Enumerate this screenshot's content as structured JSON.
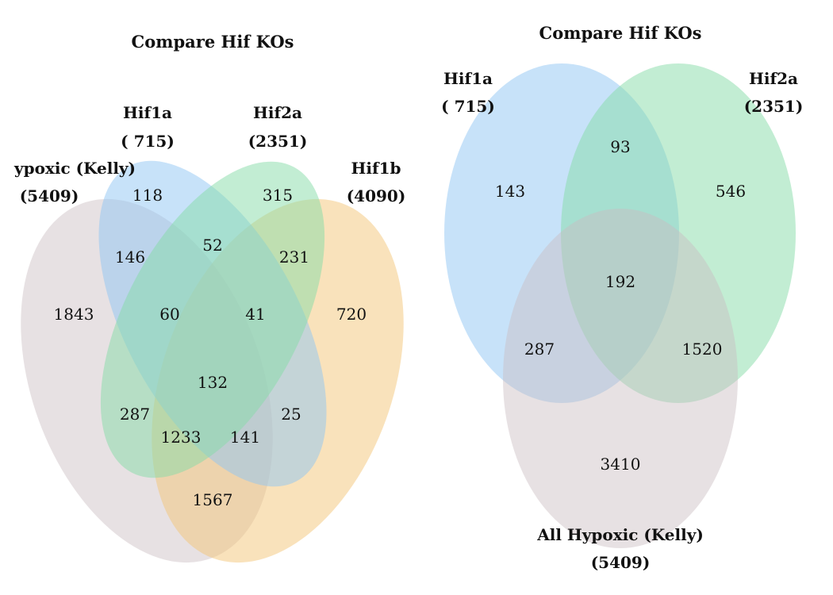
{
  "colors": {
    "grey": "#c9bcc0",
    "blue": "#8fc5f3",
    "green": "#86dca7",
    "orange": "#f3c578",
    "text": "#111111"
  },
  "left": {
    "title": "Compare Hif KOs",
    "sets": {
      "all_hypoxic": {
        "name": "ypoxic (Kelly)",
        "size": "(5409)"
      },
      "hif1a": {
        "name": "Hif1a",
        "size": "( 715)"
      },
      "hif2a": {
        "name": "Hif2a",
        "size": "(2351)"
      },
      "hif1b": {
        "name": "Hif1b",
        "size": "(4090)"
      }
    },
    "regions": {
      "hif1a_only": "118",
      "hif2a_only": "315",
      "hypoxic_only": "1843",
      "hif1b_only": "720",
      "hif1a_hif2a": "52",
      "hypoxic_hif1a": "146",
      "hif2a_hif1b": "231",
      "hypoxic_hif1a_hif2a": "60",
      "hif1a_hif2a_hif1b": "41",
      "all_four": "132",
      "hypoxic_hif2a": "287",
      "hif1a_hif1b": "25",
      "hypoxic_hif2a_hif1b": "1233",
      "hypoxic_hif1a_hif1b": "141",
      "hypoxic_hif1b": "1567"
    }
  },
  "right": {
    "title": "Compare Hif KOs",
    "sets": {
      "hif1a": {
        "name": "Hif1a",
        "size": "( 715)"
      },
      "hif2a": {
        "name": "Hif2a",
        "size": "(2351)"
      },
      "all_hypoxic": {
        "name": "All Hypoxic (Kelly)",
        "size": "(5409)"
      }
    },
    "regions": {
      "hif1a_only": "143",
      "hif2a_only": "546",
      "hif1a_hif2a": "93",
      "all_three": "192",
      "hif1a_hypoxic": "287",
      "hif2a_hypoxic": "1520",
      "hypoxic_only": "3410"
    }
  }
}
